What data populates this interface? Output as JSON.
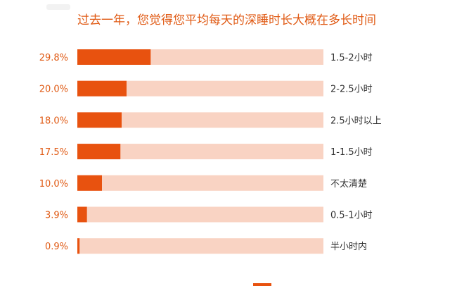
{
  "colors": {
    "accent": "#e8520f",
    "track": "#f9d3c3",
    "title": "#e05a14",
    "value_label": "#e05a14",
    "category_label": "#333333"
  },
  "chart_data": {
    "type": "bar",
    "orientation": "horizontal",
    "title": "过去一年，您觉得您平均每天的深睡时长大概在多长时间",
    "categories": [
      "1.5-2小时",
      "2-2.5小时",
      "2.5小时以上",
      "1-1.5小时",
      "不太清楚",
      "0.5-1小时",
      "半小时内"
    ],
    "values": [
      29.8,
      20.0,
      18.0,
      17.5,
      10.0,
      3.9,
      0.9
    ],
    "value_labels": [
      "29.8%",
      "20.0%",
      "18.0%",
      "17.5%",
      "10.0%",
      "3.9%",
      "0.9%"
    ],
    "unit": "%",
    "xlim": [
      0,
      100
    ],
    "grid": false,
    "legend": "none"
  }
}
